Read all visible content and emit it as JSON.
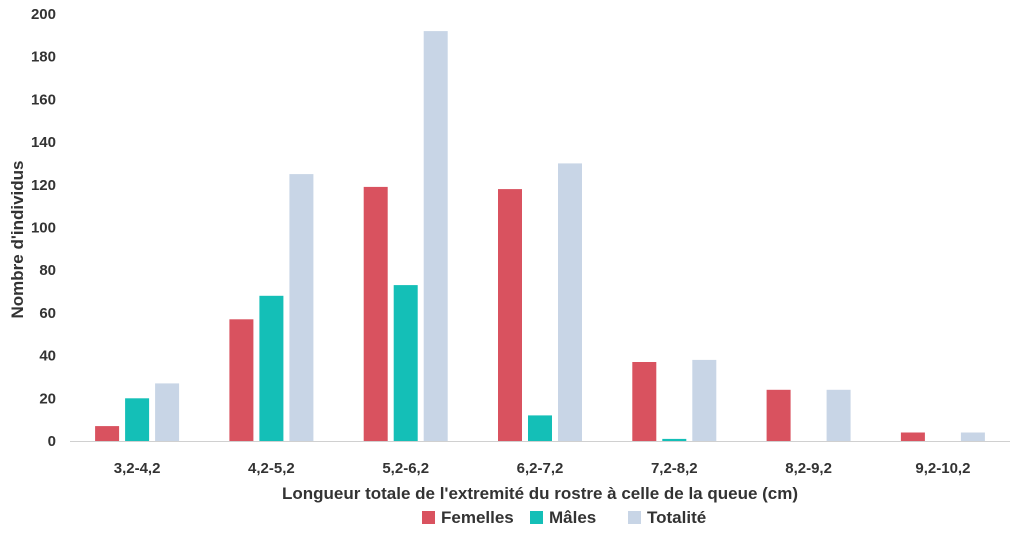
{
  "chart_data": {
    "type": "bar",
    "categories": [
      "3,2-4,2",
      "4,2-5,2",
      "5,2-6,2",
      "6,2-7,2",
      "7,2-8,2",
      "8,2-9,2",
      "9,2-10,2"
    ],
    "series": [
      {
        "name": "Femelles",
        "color": "#d9525f",
        "values": [
          7,
          57,
          119,
          118,
          37,
          24,
          4
        ]
      },
      {
        "name": "Mâles",
        "color": "#14bfb7",
        "values": [
          20,
          68,
          73,
          12,
          1,
          0,
          0
        ]
      },
      {
        "name": "Totalité",
        "color": "#c8d5e6",
        "values": [
          27,
          125,
          192,
          130,
          38,
          24,
          4
        ]
      }
    ],
    "xlabel": "Longueur totale de l'extremité du rostre à celle de la queue (cm)",
    "ylabel": "Nombre d'individus",
    "ylim": [
      0,
      200
    ],
    "yticks": [
      0,
      20,
      40,
      60,
      80,
      100,
      120,
      140,
      160,
      180,
      200
    ],
    "grid": false,
    "legend": "bottom"
  }
}
